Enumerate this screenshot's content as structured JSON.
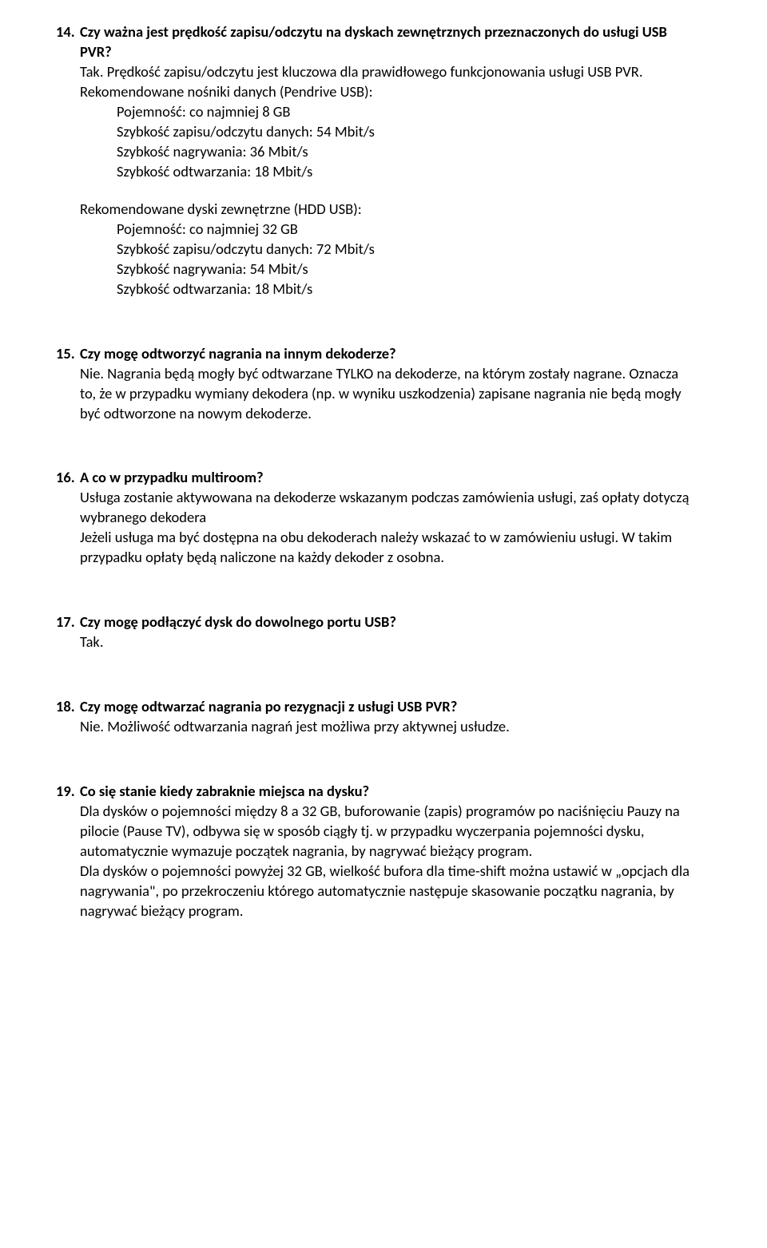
{
  "q14": {
    "num": "14.",
    "question": "Czy ważna jest prędkość zapisu/odczytu na dyskach zewnętrznych przeznaczonych do usługi USB PVR?",
    "a1": "Tak. Prędkość zapisu/odczytu jest kluczowa dla prawidłowego funkcjonowania usługi USB PVR.",
    "spec1_title": "Rekomendowane nośniki danych (Pendrive USB):",
    "spec1_l1": "Pojemność: co najmniej 8 GB",
    "spec1_l2": "Szybkość zapisu/odczytu danych: 54 Mbit/s",
    "spec1_l3": "Szybkość nagrywania: 36 Mbit/s",
    "spec1_l4": "Szybkość odtwarzania: 18 Mbit/s",
    "spec2_title": "Rekomendowane dyski zewnętrzne (HDD USB):",
    "spec2_l1": "Pojemność: co najmniej 32 GB",
    "spec2_l2": "Szybkość zapisu/odczytu danych: 72 Mbit/s",
    "spec2_l3": "Szybkość nagrywania: 54 Mbit/s",
    "spec2_l4": "Szybkość odtwarzania: 18 Mbit/s"
  },
  "q15": {
    "num": "15.",
    "question": "Czy mogę odtworzyć nagrania na innym dekoderze?",
    "a1": "Nie. Nagrania będą mogły być odtwarzane TYLKO na dekoderze, na którym zostały nagrane. Oznacza to, że w przypadku wymiany dekodera (np. w wyniku uszkodzenia) zapisane nagrania nie będą mogły być odtworzone na nowym dekoderze."
  },
  "q16": {
    "num": "16.",
    "question": "A co w przypadku multiroom?",
    "a1": "Usługa zostanie aktywowana na dekoderze wskazanym podczas zamówienia usługi, zaś opłaty dotyczą wybranego dekodera",
    "a2": "Jeżeli usługa ma być dostępna na obu dekoderach należy wskazać to w zamówieniu usługi. W takim przypadku opłaty będą naliczone na każdy dekoder z osobna."
  },
  "q17": {
    "num": "17.",
    "question": "Czy mogę podłączyć dysk do dowolnego portu USB?",
    "a1": "Tak."
  },
  "q18": {
    "num": "18.",
    "question": "Czy mogę odtwarzać nagrania po rezygnacji z usługi USB PVR?",
    "a1": "Nie. Możliwość odtwarzania nagrań jest możliwa przy aktywnej usłudze."
  },
  "q19": {
    "num": "19.",
    "question": "Co się stanie kiedy zabraknie miejsca na dysku?",
    "a1": "Dla dysków o pojemności między 8 a 32 GB, buforowanie (zapis) programów po naciśnięciu Pauzy na pilocie (Pause TV), odbywa się w sposób ciągły tj. w przypadku wyczerpania pojemności dysku, automatycznie wymazuje początek nagrania, by nagrywać bieżący program.",
    "a2": "Dla dysków o pojemności powyżej 32 GB, wielkość bufora dla time-shift można ustawić w „opcjach dla nagrywania\", po przekroczeniu którego automatycznie następuje skasowanie początku nagrania, by nagrywać bieżący program."
  }
}
